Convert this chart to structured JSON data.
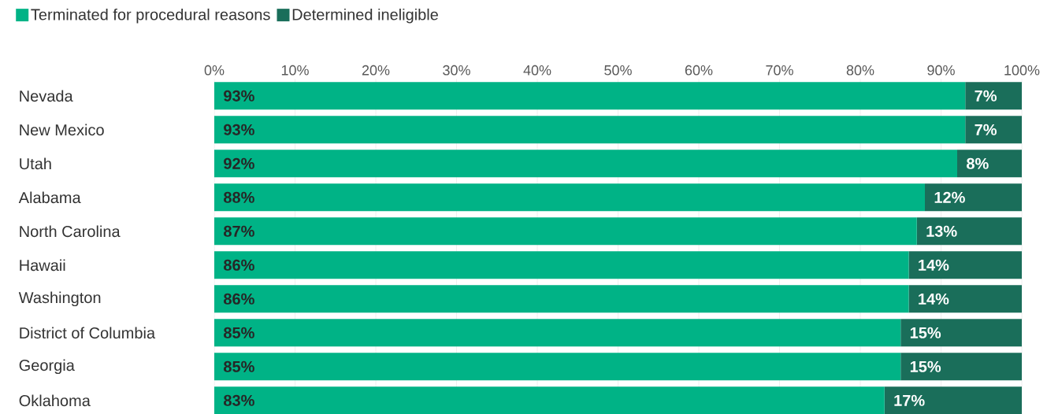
{
  "chart_data": {
    "type": "bar",
    "orientation": "horizontal",
    "stacked": true,
    "legend": "top left",
    "grid": "x",
    "categories": [
      "Nevada",
      "New Mexico",
      "Utah",
      "Alabama",
      "North Carolina",
      "Hawaii",
      "Washington",
      "District of Columbia",
      "Georgia",
      "Oklahoma"
    ],
    "xlim": [
      0,
      100
    ],
    "xticks": [
      {
        "value": 0,
        "label": "0%"
      },
      {
        "value": 10,
        "label": "10%"
      },
      {
        "value": 20,
        "label": "20%"
      },
      {
        "value": 30,
        "label": "30%"
      },
      {
        "value": 40,
        "label": "40%"
      },
      {
        "value": 50,
        "label": "50%"
      },
      {
        "value": 60,
        "label": "60%"
      },
      {
        "value": 70,
        "label": "70%"
      },
      {
        "value": 80,
        "label": "80%"
      },
      {
        "value": 90,
        "label": "90%"
      },
      {
        "value": 100,
        "label": "100%"
      }
    ],
    "series": [
      {
        "name": "Terminated for procedural reasons",
        "color": "#00b386",
        "values": [
          93,
          93,
          92,
          88,
          87,
          86,
          86,
          85,
          85,
          83
        ],
        "value_labels": [
          "93%",
          "93%",
          "92%",
          "88%",
          "87%",
          "86%",
          "86%",
          "85%",
          "85%",
          "83%"
        ]
      },
      {
        "name": "Determined ineligible",
        "color": "#1a6e5a",
        "values": [
          7,
          7,
          8,
          12,
          13,
          14,
          14,
          15,
          15,
          17
        ],
        "value_labels": [
          "7%",
          "7%",
          "8%",
          "12%",
          "13%",
          "14%",
          "14%",
          "15%",
          "15%",
          "17%"
        ]
      }
    ]
  }
}
